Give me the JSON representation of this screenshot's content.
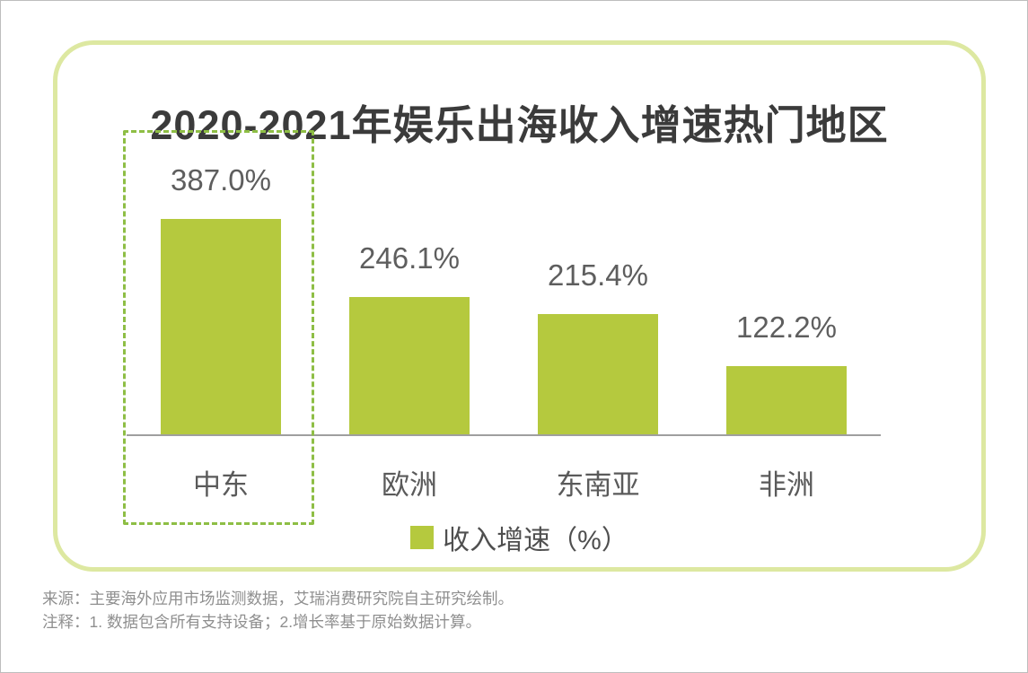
{
  "chart_data": {
    "type": "bar",
    "title": "2020-2021年娱乐出海收入增速热门地区",
    "categories": [
      "中东",
      "欧洲",
      "东南亚",
      "非洲"
    ],
    "values": [
      387.0,
      246.1,
      215.4,
      122.2
    ],
    "value_labels": [
      "387.0%",
      "246.1%",
      "215.4%",
      "122.2%"
    ],
    "xlabel": "",
    "ylabel": "",
    "ylim": [
      0,
      420
    ],
    "grid": false,
    "axis_visible": "x-baseline-only",
    "bar_color": "#b5c93e",
    "legend": {
      "label": "收入增速（%）",
      "position": "bottom-center",
      "swatch_color": "#b5c93e"
    },
    "highlight": {
      "category": "中东",
      "style": "dashed-box",
      "border_color": "#8ebe45"
    }
  },
  "footer": {
    "source": "来源：主要海外应用市场监测数据，艾瑞消费研究院自主研究绘制。",
    "note": "注释：1. 数据包含所有支持设备；2.增长率基于原始数据计算。"
  },
  "colors": {
    "bar": "#b5c93e",
    "card_border": "#dde8a1",
    "highlight_border": "#8ebe45",
    "axis": "#9f9f9f",
    "title_text": "#3b3b3b",
    "value_text": "#5e5e5e",
    "category_text": "#5a5a5a",
    "legend_text": "#4f4f4f",
    "footer_text": "#8f8f8f"
  }
}
